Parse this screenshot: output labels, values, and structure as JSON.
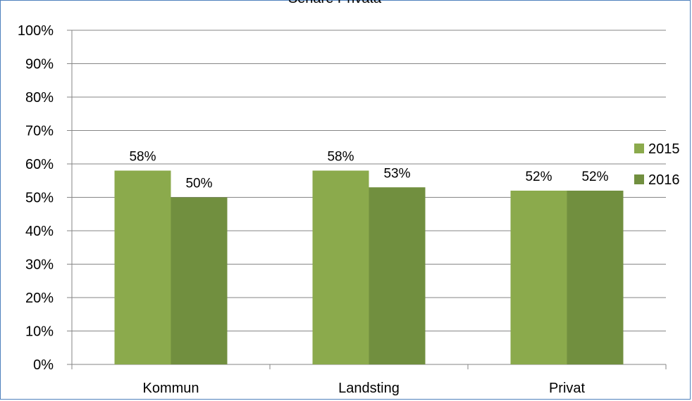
{
  "chart_data": {
    "type": "bar",
    "title": "Senare Privata",
    "categories": [
      "Kommun",
      "Landsting",
      "Privat"
    ],
    "series": [
      {
        "name": "2015",
        "values": [
          58,
          58,
          52
        ],
        "labels": [
          "58%",
          "58%",
          "52%"
        ],
        "color": "#8baa4c"
      },
      {
        "name": "2016",
        "values": [
          50,
          53,
          52
        ],
        "labels": [
          "50%",
          "53%",
          "52%"
        ],
        "color": "#718f3f"
      }
    ],
    "ylim": [
      0,
      100
    ],
    "yticks": [
      0,
      10,
      20,
      30,
      40,
      50,
      60,
      70,
      80,
      90,
      100
    ],
    "ytick_labels": [
      "0%",
      "10%",
      "20%",
      "30%",
      "40%",
      "50%",
      "60%",
      "70%",
      "80%",
      "90%",
      "100%"
    ],
    "xlabel": "",
    "ylabel": "",
    "grid": true,
    "legend": "right",
    "gridline_color": "#868686",
    "border_color": "#4f81bd"
  }
}
